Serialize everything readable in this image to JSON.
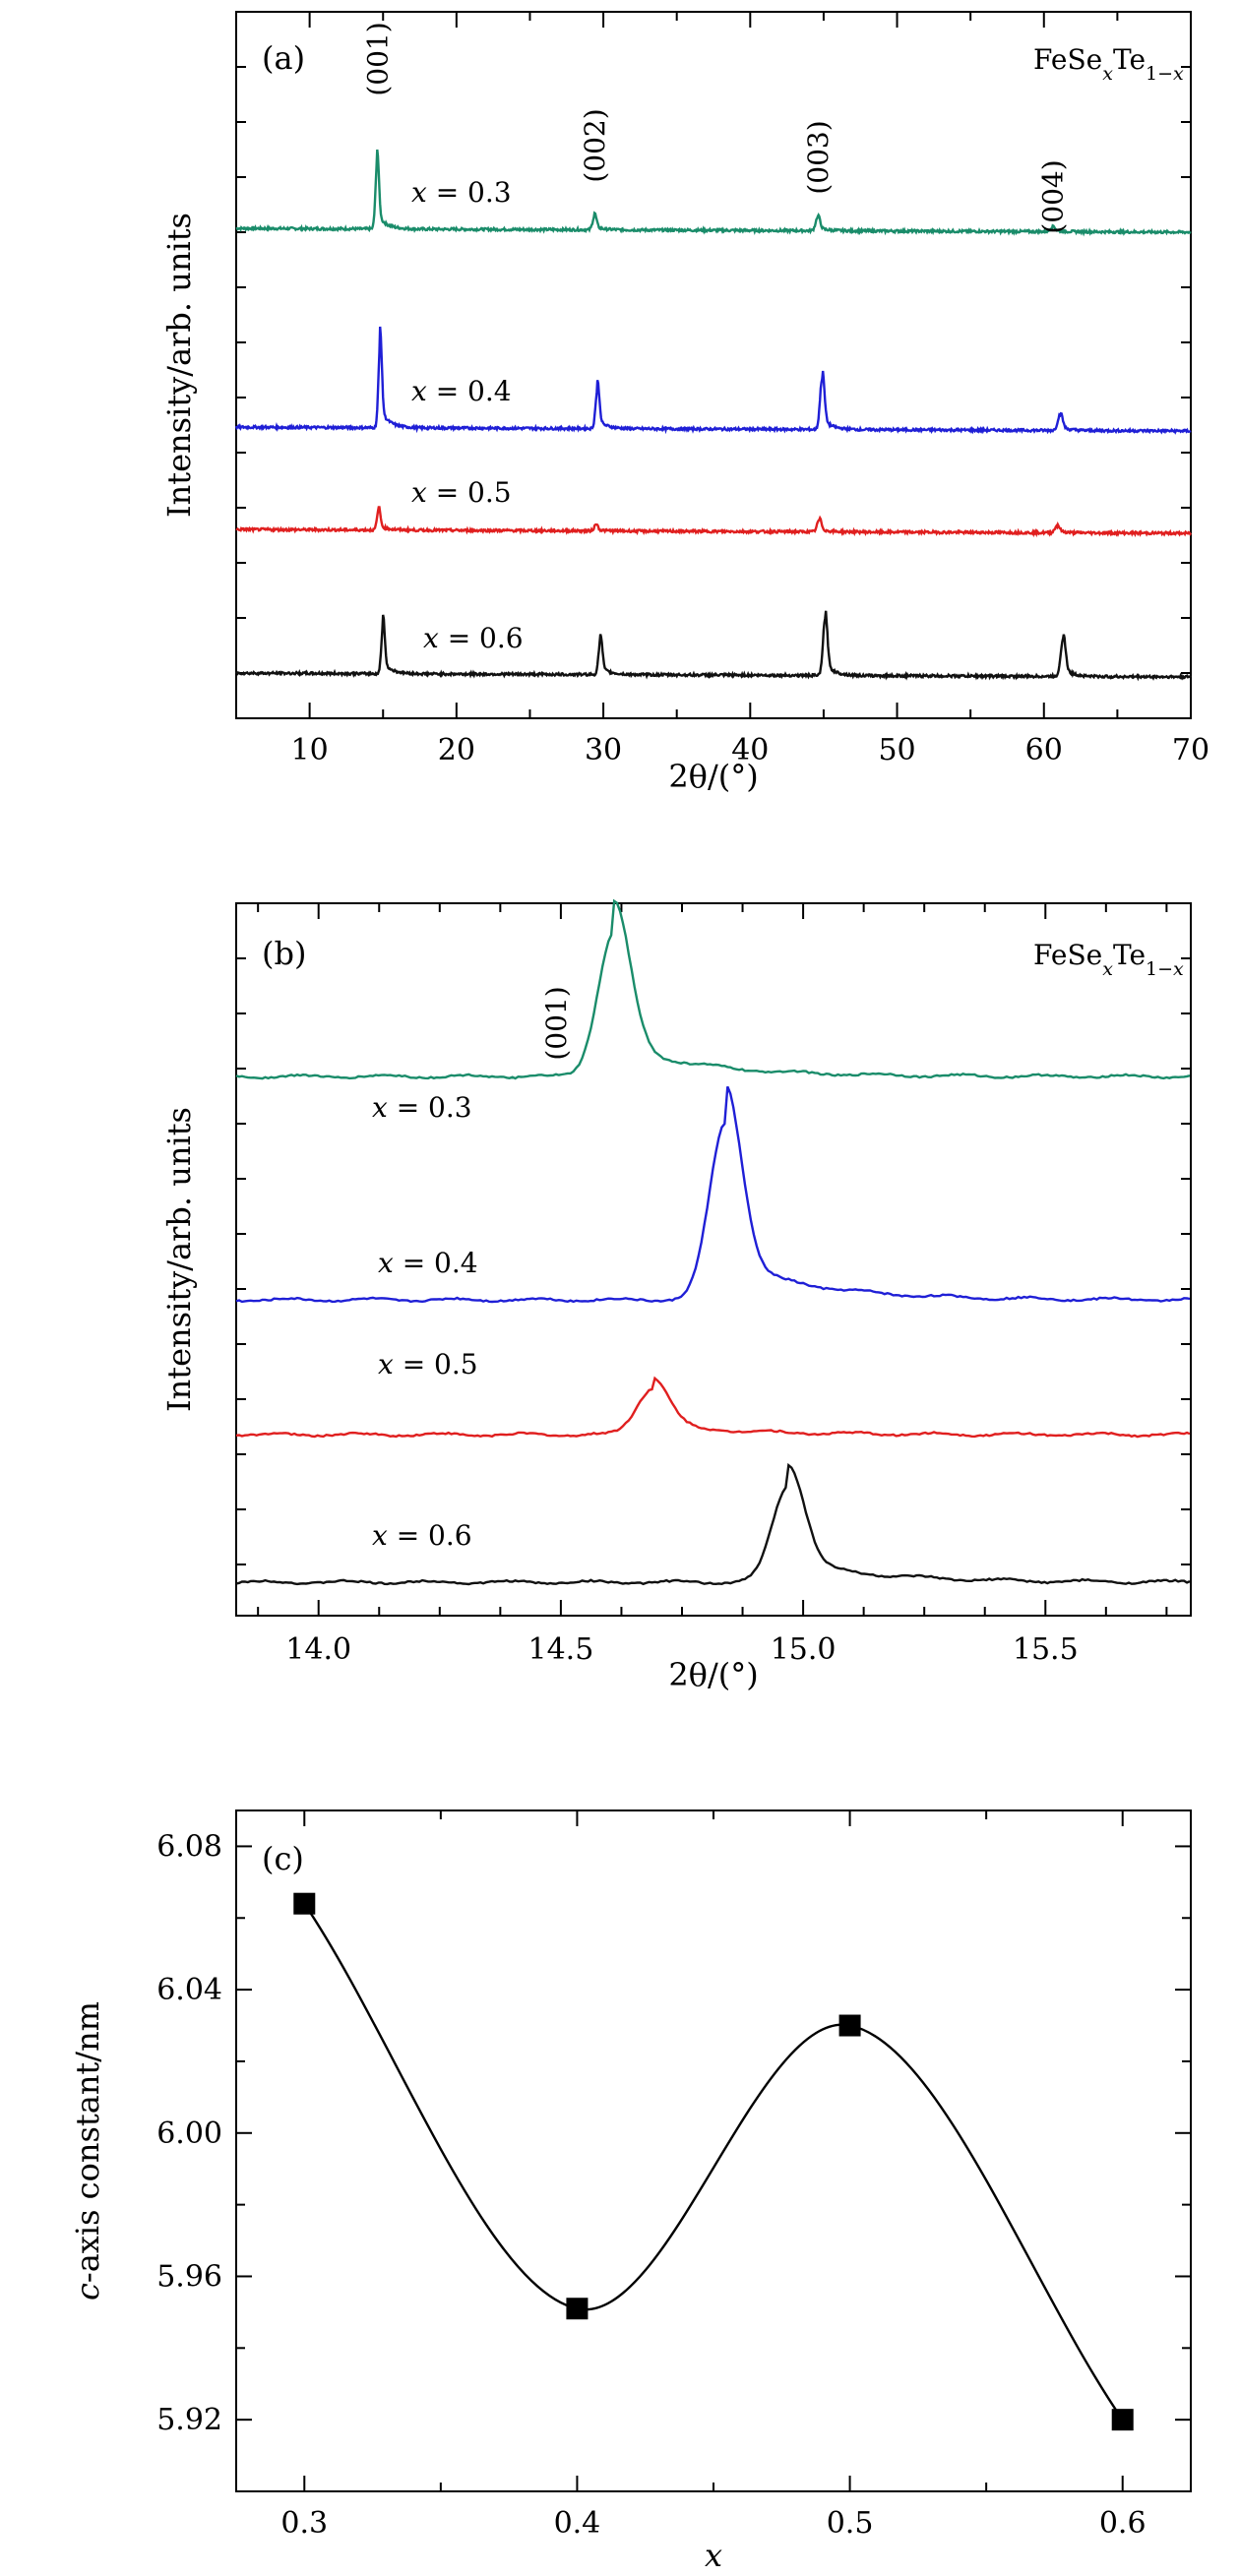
{
  "chart_data": [
    {
      "type": "line",
      "panel_label": "(a)",
      "annotation": "FeSexTe1−x",
      "xlabel": "2θ/(°)",
      "ylabel": "Intensity/arb. units",
      "xlim": [
        5,
        70
      ],
      "y_tick_labels": false,
      "x_ticks": [
        10,
        20,
        30,
        40,
        50,
        60,
        70
      ],
      "peak_labels": [
        {
          "label": "(001)",
          "x": 14.6
        },
        {
          "label": "(002)",
          "x": 29.4
        },
        {
          "label": "(003)",
          "x": 44.6
        },
        {
          "label": "(004)",
          "x": 60.6
        }
      ],
      "series": [
        {
          "name": "x = 0.3",
          "color": "#1a8c6a",
          "baseline": 0.91,
          "peaks": [
            {
              "x": 14.6,
              "h": 0.67
            },
            {
              "x": 29.4,
              "h": 0.14
            },
            {
              "x": 44.6,
              "h": 0.14
            },
            {
              "x": 60.6,
              "h": 0.05
            }
          ]
        },
        {
          "name": "x = 0.4",
          "color": "#1f1fd6",
          "baseline": 0.26,
          "peaks": [
            {
              "x": 14.8,
              "h": 0.84
            },
            {
              "x": 29.6,
              "h": 0.4
            },
            {
              "x": 44.9,
              "h": 0.52
            },
            {
              "x": 61.1,
              "h": 0.16
            }
          ]
        },
        {
          "name": "x = 0.5",
          "color": "#e01f1f",
          "baseline": 0.0,
          "peaks": [
            {
              "x": 14.7,
              "h": 0.2
            },
            {
              "x": 29.5,
              "h": 0.06
            },
            {
              "x": 44.7,
              "h": 0.12
            },
            {
              "x": 60.9,
              "h": 0.07
            }
          ]
        },
        {
          "name": "x = 0.6",
          "color": "#111111",
          "baseline": -0.86,
          "peaks": [
            {
              "x": 15.0,
              "h": 0.49
            },
            {
              "x": 29.8,
              "h": 0.34
            },
            {
              "x": 45.1,
              "h": 0.57
            },
            {
              "x": 61.3,
              "h": 0.38
            }
          ]
        }
      ]
    },
    {
      "type": "line",
      "panel_label": "(b)",
      "annotation": "FeSexTe1−x",
      "xlabel": "2θ/(°)",
      "ylabel": "Intensity/arb. units",
      "xlim": [
        13.83,
        15.8
      ],
      "y_tick_labels": false,
      "x_ticks": [
        14.0,
        14.5,
        15.0,
        15.5
      ],
      "peak_labels": [
        {
          "label": "(001)",
          "x": 14.49
        }
      ],
      "series": [
        {
          "name": "x = 0.3",
          "color": "#1a8c6a",
          "baseline": 0.0,
          "peak_x": 14.61,
          "peak_h": 0.86
        },
        {
          "name": "x = 0.4",
          "color": "#1f1fd6",
          "baseline": 0.0,
          "peak_x": 14.84,
          "peak_h": 1.06
        },
        {
          "name": "x = 0.5",
          "color": "#e01f1f",
          "baseline": 0.0,
          "peak_x": 14.69,
          "peak_h": 0.28
        },
        {
          "name": "x = 0.6",
          "color": "#111111",
          "baseline": 0.0,
          "peak_x": 14.97,
          "peak_h": 0.58
        }
      ]
    },
    {
      "type": "scatter",
      "panel_label": "(c)",
      "xlabel": "x",
      "ylabel": "c-axis constant/nm",
      "xlim": [
        0.275,
        0.625
      ],
      "ylim": [
        5.9,
        6.09
      ],
      "x_ticks": [
        0.3,
        0.4,
        0.5,
        0.6
      ],
      "y_ticks": [
        5.92,
        5.96,
        6.0,
        6.04,
        6.08
      ],
      "x": [
        0.3,
        0.4,
        0.5,
        0.6
      ],
      "y": [
        6.064,
        5.951,
        6.03,
        5.92
      ],
      "smooth_line": true,
      "marker": "square",
      "color": "#000000"
    }
  ]
}
